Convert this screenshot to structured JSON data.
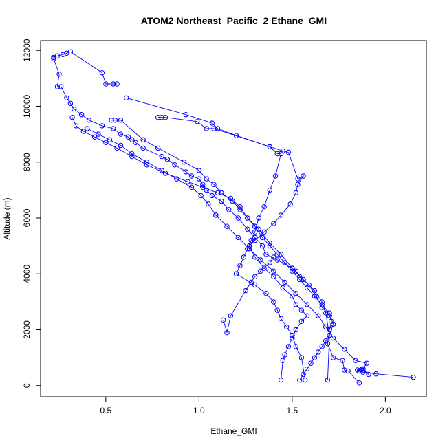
{
  "chart_data": {
    "type": "line",
    "title": "ATOM2 Northeast_Pacific_2 Ethane_GMI",
    "xlabel": "Ethane_GMI",
    "ylabel": "Altitude (m)",
    "xlim": [
      0.15,
      2.22
    ],
    "ylim": [
      -400,
      12350
    ],
    "xticks": [
      0.5,
      1.0,
      1.5,
      2.0
    ],
    "xtick_labels": [
      "0.5",
      "1.0",
      "1.5",
      "2.0"
    ],
    "yticks": [
      0,
      2000,
      4000,
      6000,
      8000,
      10000,
      12000
    ],
    "ytick_labels": [
      "0",
      "2000",
      "4000",
      "6000",
      "8000",
      "10000",
      "12000"
    ],
    "grid": false,
    "color": "#0000ff",
    "marker": "open-circle",
    "series": [
      {
        "x": [
          2.15,
          1.95,
          1.88,
          1.86,
          1.85,
          1.87,
          1.88
        ],
        "y": [
          300,
          420,
          480,
          520,
          560,
          570,
          560
        ]
      },
      {
        "x": [
          1.86,
          1.8,
          1.78,
          1.77,
          1.72,
          1.69,
          1.7,
          1.71,
          1.7,
          1.66,
          1.63,
          1.59,
          1.54,
          1.52,
          1.5
        ],
        "y": [
          100,
          520,
          560,
          900,
          1000,
          1500,
          2000,
          2300,
          2500,
          2800,
          3200,
          3600,
          3900,
          4100,
          4200
        ]
      },
      {
        "x": [
          1.5,
          1.42,
          1.36,
          1.34,
          1.3,
          1.26,
          1.21,
          1.16,
          1.12,
          1.07,
          1.04,
          1.02,
          1.0,
          0.96,
          0.93,
          0.87,
          0.83
        ],
        "y": [
          4200,
          4500,
          4700,
          5000,
          5300,
          5600,
          6000,
          6300,
          6600,
          6800,
          7000,
          7200,
          7400,
          7500,
          7650,
          7900,
          8100
        ]
      },
      {
        "x": [
          0.83,
          0.8,
          0.7,
          0.66,
          0.64,
          0.62,
          0.58,
          0.54,
          0.48,
          0.41,
          0.37,
          0.33,
          0.31,
          0.29,
          0.26
        ],
        "y": [
          8100,
          8200,
          8500,
          8700,
          8800,
          8900,
          9000,
          9200,
          9300,
          9500,
          9700,
          9900,
          10100,
          10300,
          10700
        ]
      },
      {
        "x": [
          0.24,
          0.25,
          0.22,
          0.22,
          0.24,
          0.27,
          0.29,
          0.31,
          0.48,
          0.5,
          0.54,
          0.56
        ],
        "y": [
          10700,
          11150,
          11700,
          11750,
          11800,
          11850,
          11900,
          11950,
          11200,
          10800,
          10800,
          10800
        ]
      },
      {
        "x": [
          0.61,
          0.93,
          1.07,
          1.1,
          1.2,
          1.38,
          1.45,
          1.48,
          1.53,
          1.56,
          1.53,
          1.52,
          1.49,
          1.44,
          1.4,
          1.35,
          1.3,
          1.27
        ],
        "y": [
          10300,
          9700,
          9400,
          9200,
          8950,
          8550,
          8400,
          8350,
          7400,
          7500,
          7200,
          6900,
          6500,
          6100,
          5800,
          5500,
          5200,
          5000
        ]
      },
      {
        "x": [
          1.27,
          1.3,
          1.35,
          1.4,
          1.45,
          1.5,
          1.52,
          1.55,
          1.58,
          1.55,
          1.52,
          1.5,
          1.48,
          1.46,
          1.45,
          1.44
        ],
        "y": [
          5000,
          4600,
          4200,
          3900,
          3500,
          3200,
          2900,
          2700,
          2500,
          2300,
          2000,
          1700,
          1400,
          1100,
          900,
          200
        ]
      },
      {
        "x": [
          0.78,
          0.8,
          0.82,
          0.99,
          1.04,
          1.08,
          1.38,
          1.42,
          1.44
        ],
        "y": [
          9600,
          9600,
          9600,
          9450,
          9200,
          9200,
          8550,
          8300,
          8300
        ]
      },
      {
        "x": [
          1.44,
          1.41,
          1.38,
          1.35,
          1.32,
          1.3,
          1.28,
          1.26,
          1.24,
          1.22,
          1.2
        ],
        "y": [
          8300,
          7500,
          7000,
          6400,
          6000,
          5500,
          5200,
          4900,
          4600,
          4300,
          4000
        ]
      },
      {
        "x": [
          1.2,
          1.3,
          1.36,
          1.4,
          1.42,
          1.44,
          1.47,
          1.5,
          1.52,
          1.55,
          1.57
        ],
        "y": [
          4000,
          3600,
          3300,
          3000,
          2700,
          2400,
          2100,
          1800,
          1400,
          1000,
          200
        ]
      },
      {
        "x": [
          1.13,
          1.15,
          1.17,
          1.25,
          1.28,
          1.3,
          1.33,
          1.38,
          1.4
        ],
        "y": [
          2350,
          1900,
          2500,
          3400,
          3700,
          3900,
          4100,
          4400,
          4600
        ]
      },
      {
        "x": [
          0.53,
          0.55,
          0.58,
          0.7,
          0.78,
          0.92,
          1.0,
          1.04,
          1.08,
          1.12,
          1.18,
          1.22,
          1.26,
          1.3
        ],
        "y": [
          9500,
          9500,
          9500,
          8800,
          8500,
          8000,
          7700,
          7400,
          7200,
          6900,
          6600,
          6300,
          6000,
          5700
        ]
      },
      {
        "x": [
          1.3,
          1.34,
          1.38,
          1.42,
          1.46,
          1.5,
          1.54,
          1.58,
          1.62,
          1.66,
          1.7,
          1.72
        ],
        "y": [
          5700,
          5300,
          5000,
          4700,
          4400,
          4100,
          3800,
          3500,
          3200,
          2900,
          2600,
          2200
        ]
      },
      {
        "x": [
          1.72,
          1.7,
          1.68,
          1.66,
          1.64,
          1.62,
          1.6,
          1.58,
          1.56,
          1.54
        ],
        "y": [
          2200,
          1800,
          1600,
          1400,
          1200,
          1000,
          800,
          600,
          400,
          200
        ]
      },
      {
        "x": [
          0.32,
          0.34,
          0.38,
          0.44,
          0.5,
          0.56,
          0.64,
          0.72,
          0.82,
          0.94,
          1.02,
          1.1,
          1.17,
          1.22
        ],
        "y": [
          9600,
          9300,
          9100,
          8900,
          8700,
          8500,
          8200,
          7900,
          7600,
          7300,
          7100,
          6900,
          6700,
          6400
        ]
      },
      {
        "x": [
          1.22,
          1.26,
          1.32,
          1.38,
          1.44,
          1.5,
          1.56,
          1.62,
          1.66,
          1.68,
          1.7,
          1.69
        ],
        "y": [
          6400,
          6000,
          5600,
          5100,
          4700,
          4200,
          3800,
          3400,
          3000,
          2600,
          1800,
          200
        ]
      },
      {
        "x": [
          0.4,
          0.46,
          0.52,
          0.58,
          0.64,
          0.72,
          0.8,
          0.88,
          0.96,
          1.01,
          1.05,
          1.09
        ],
        "y": [
          9200,
          9000,
          8800,
          8600,
          8300,
          8000,
          7700,
          7400,
          7100,
          6800,
          6500,
          6100
        ]
      },
      {
        "x": [
          1.09,
          1.15,
          1.21,
          1.27,
          1.33,
          1.4,
          1.46,
          1.52,
          1.58,
          1.64,
          1.68,
          1.72,
          1.78,
          1.84,
          1.9,
          1.88,
          1.91
        ],
        "y": [
          6100,
          5700,
          5300,
          4900,
          4500,
          4100,
          3700,
          3300,
          2900,
          2500,
          2100,
          1700,
          1300,
          900,
          800,
          600,
          400
        ]
      }
    ]
  }
}
